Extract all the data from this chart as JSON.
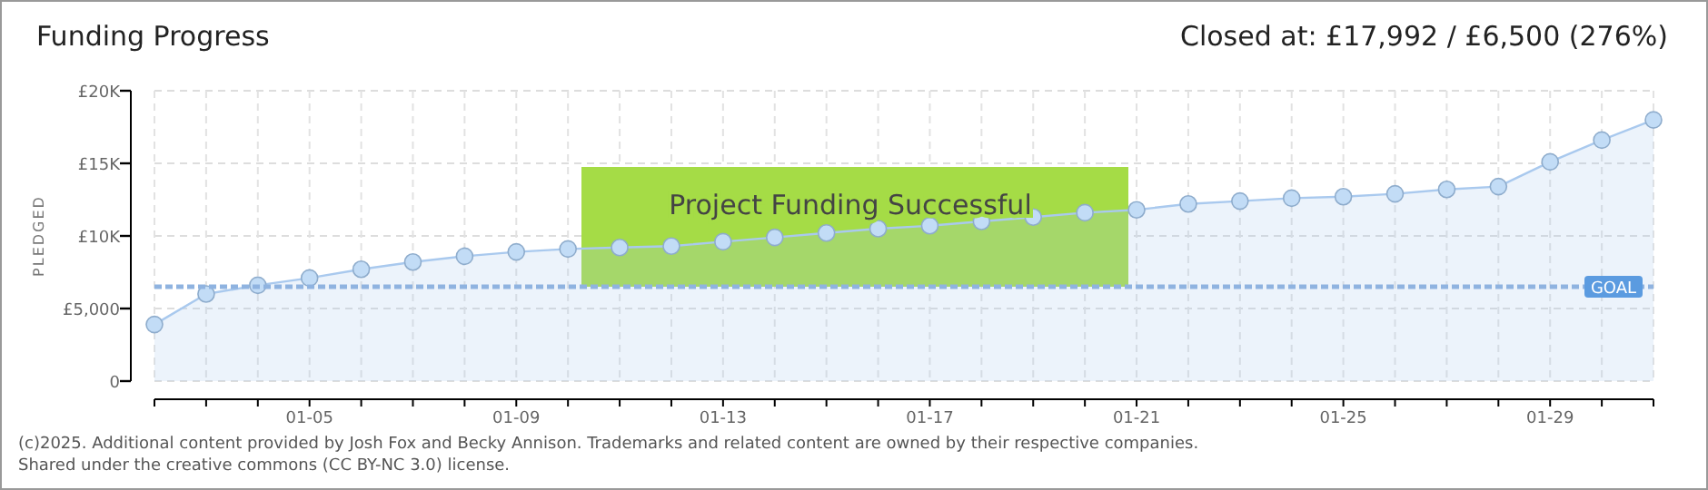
{
  "chart_data": {
    "type": "area",
    "title": "Funding Progress",
    "subtitle": "Closed at:  £17,992 /  £6,500 (276%)",
    "ylabel": "PLEDGED",
    "categories": [
      null,
      null,
      null,
      "01-05",
      null,
      null,
      null,
      "01-09",
      null,
      null,
      null,
      "01-13",
      null,
      null,
      null,
      "01-17",
      null,
      null,
      null,
      "01-21",
      null,
      null,
      null,
      "01-25",
      null,
      null,
      null,
      "01-29",
      null,
      null
    ],
    "series": [
      {
        "color": "#a9c9ee",
        "values": [
          3900,
          6000,
          6600,
          7100,
          7700,
          8200,
          8600,
          8900,
          9100,
          9200,
          9300,
          9600,
          9900,
          10200,
          10500,
          10700,
          11000,
          11300,
          11600,
          11800,
          12200,
          12400,
          12600,
          12700,
          12900,
          13200,
          13400,
          15100,
          16600,
          17992
        ]
      }
    ],
    "ylim": [
      0,
      20000
    ],
    "yticks": [
      0,
      {
        "value": 5000,
        "label": "£5,000"
      },
      {
        "value": 10000,
        "label": "£10K"
      },
      {
        "value": 15000,
        "label": "£15K"
      },
      {
        "value": 20000,
        "label": "£20K"
      }
    ],
    "grid": true,
    "marker": "circle",
    "ref_lines": [
      {
        "axis": "y",
        "value": 6500,
        "label": "GOAL",
        "color": "#8fb3e0",
        "line_style": "dashed"
      }
    ],
    "annotations": [
      "Project Funding Successful",
      "(c)2025. Additional content provided by Josh Fox and Becky Annison. Trademarks and related content are owned by their respective companies.",
      "Shared under the creative commons (CC BY-NC 3.0) license."
    ]
  }
}
